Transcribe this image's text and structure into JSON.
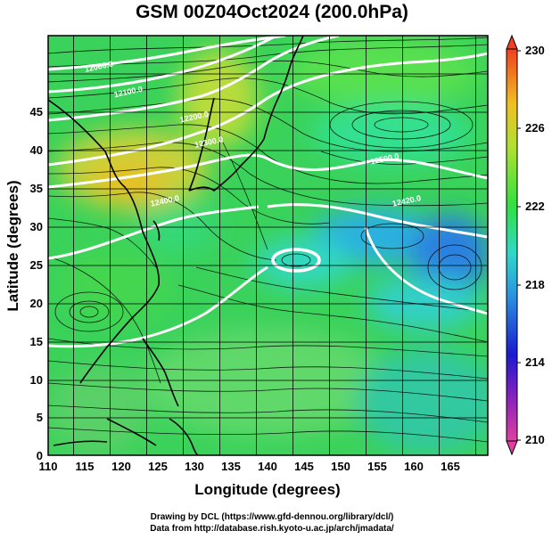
{
  "title": "GSM 00Z04Oct2024 (200.0hPa)",
  "x_axis": {
    "label": "Longitude (degrees)",
    "ticks": [
      "110",
      "115",
      "120",
      "125",
      "130",
      "135",
      "140",
      "145",
      "150",
      "155",
      "160",
      "165"
    ],
    "range": [
      110,
      170
    ]
  },
  "y_axis": {
    "label": "Latitude  (degrees)",
    "ticks": [
      "0",
      "5",
      "10",
      "15",
      "20",
      "25",
      "30",
      "35",
      "40",
      "45"
    ],
    "range": [
      0,
      50
    ]
  },
  "colorbar": {
    "ticks": [
      "230",
      "226",
      "222",
      "218",
      "214",
      "210"
    ],
    "range": [
      210,
      230
    ],
    "colors": [
      "#e040a0",
      "#1a1ad0",
      "#2a9ae0",
      "#30d8c8",
      "#30e040",
      "#b0e030",
      "#f0c020",
      "#f04020"
    ]
  },
  "contour_labels": [
    {
      "text": "12060.0",
      "lon": 117,
      "lat": 46
    },
    {
      "text": "12100.0",
      "lon": 121,
      "lat": 43
    },
    {
      "text": "12200.0",
      "lon": 130,
      "lat": 40
    },
    {
      "text": "12300.0",
      "lon": 132,
      "lat": 37
    },
    {
      "text": "12400.0",
      "lon": 126,
      "lat": 30
    },
    {
      "text": "12500.0",
      "lon": 156,
      "lat": 35
    },
    {
      "text": "12420.0",
      "lon": 159,
      "lat": 30
    }
  ],
  "credits": [
    "Drawing by DCL (https://www.gfd-dennou.org/library/dcl/)",
    "Data from http://database.rish.kyoto-u.ac.jp/arch/jmadata/"
  ]
}
